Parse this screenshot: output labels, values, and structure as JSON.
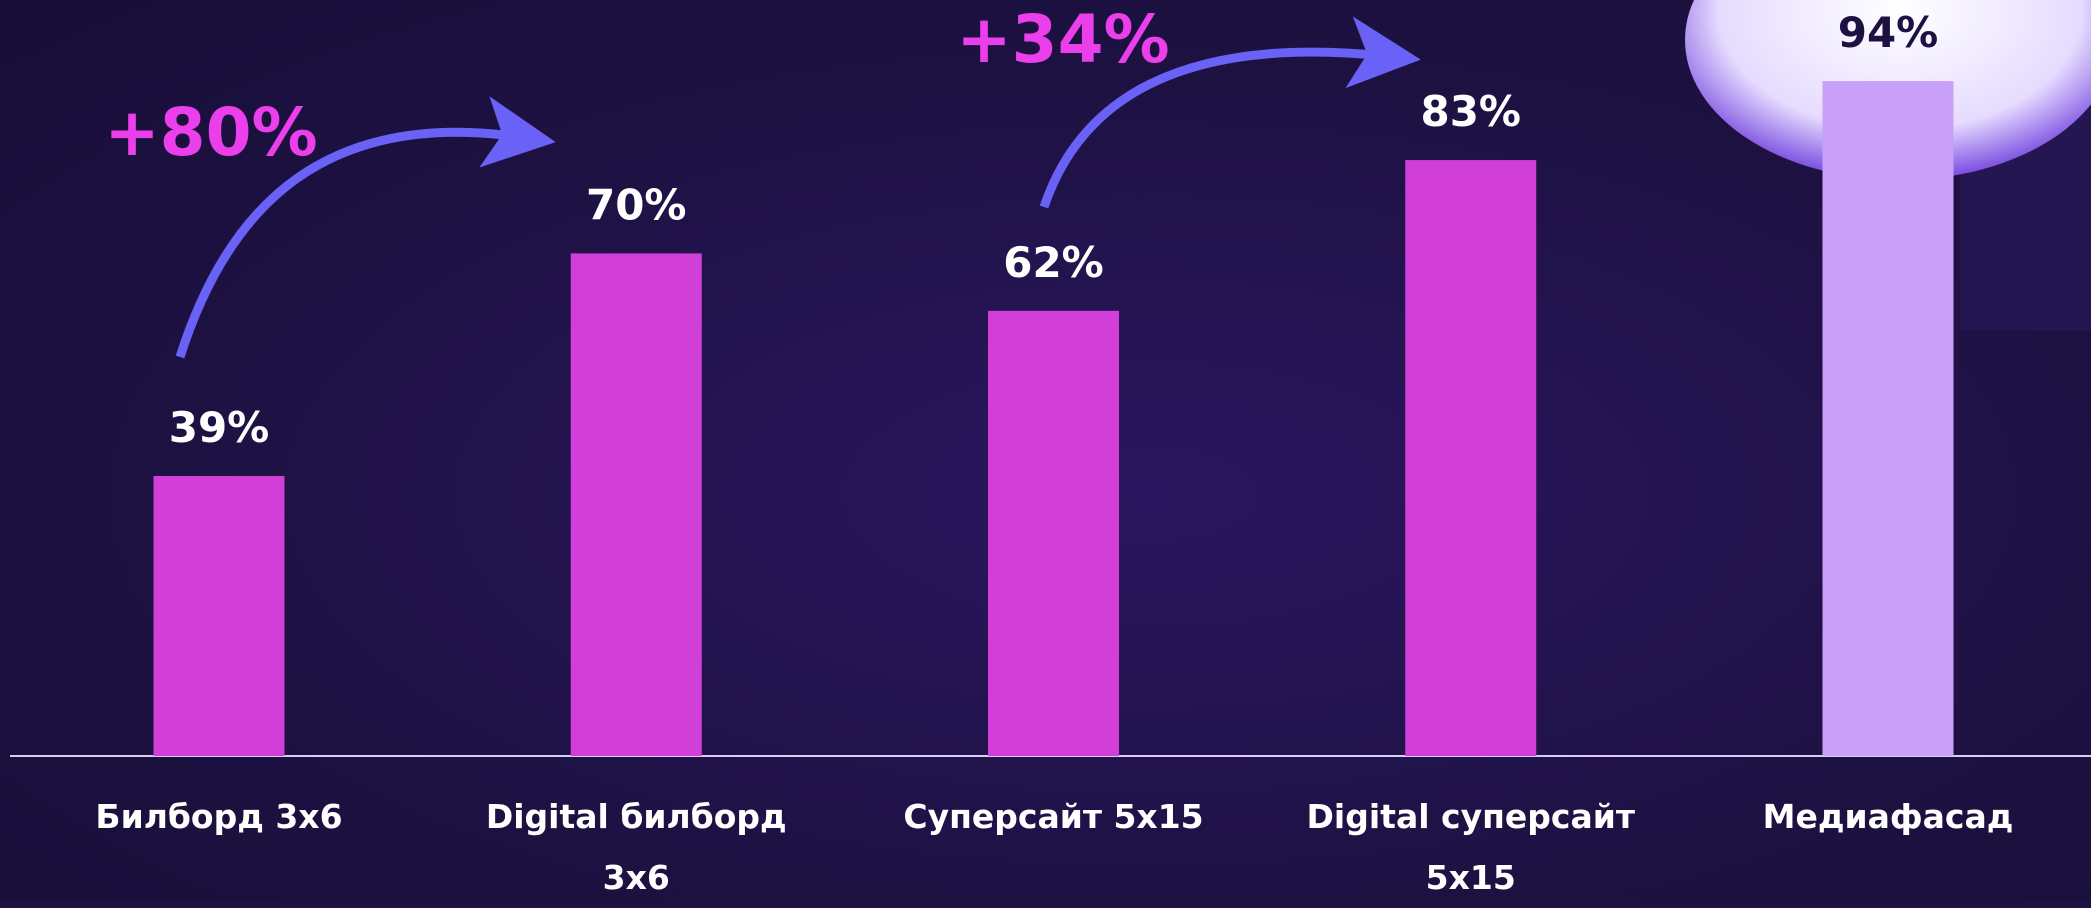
{
  "chart_data": {
    "type": "bar",
    "categories": [
      "Билборд 3x6",
      "Digital билборд 3x6",
      "Суперсайт 5x15",
      "Digital суперсайт 5x15",
      "Медиафасад"
    ],
    "values": [
      39,
      70,
      62,
      83,
      94
    ],
    "value_labels": [
      "39%",
      "70%",
      "62%",
      "83%",
      "94%"
    ],
    "colors": [
      "#d23fd8",
      "#d23fd8",
      "#d23fd8",
      "#d23fd8",
      "#c9a0f7"
    ],
    "annotations": [
      "+80%",
      "+34%"
    ]
  }
}
